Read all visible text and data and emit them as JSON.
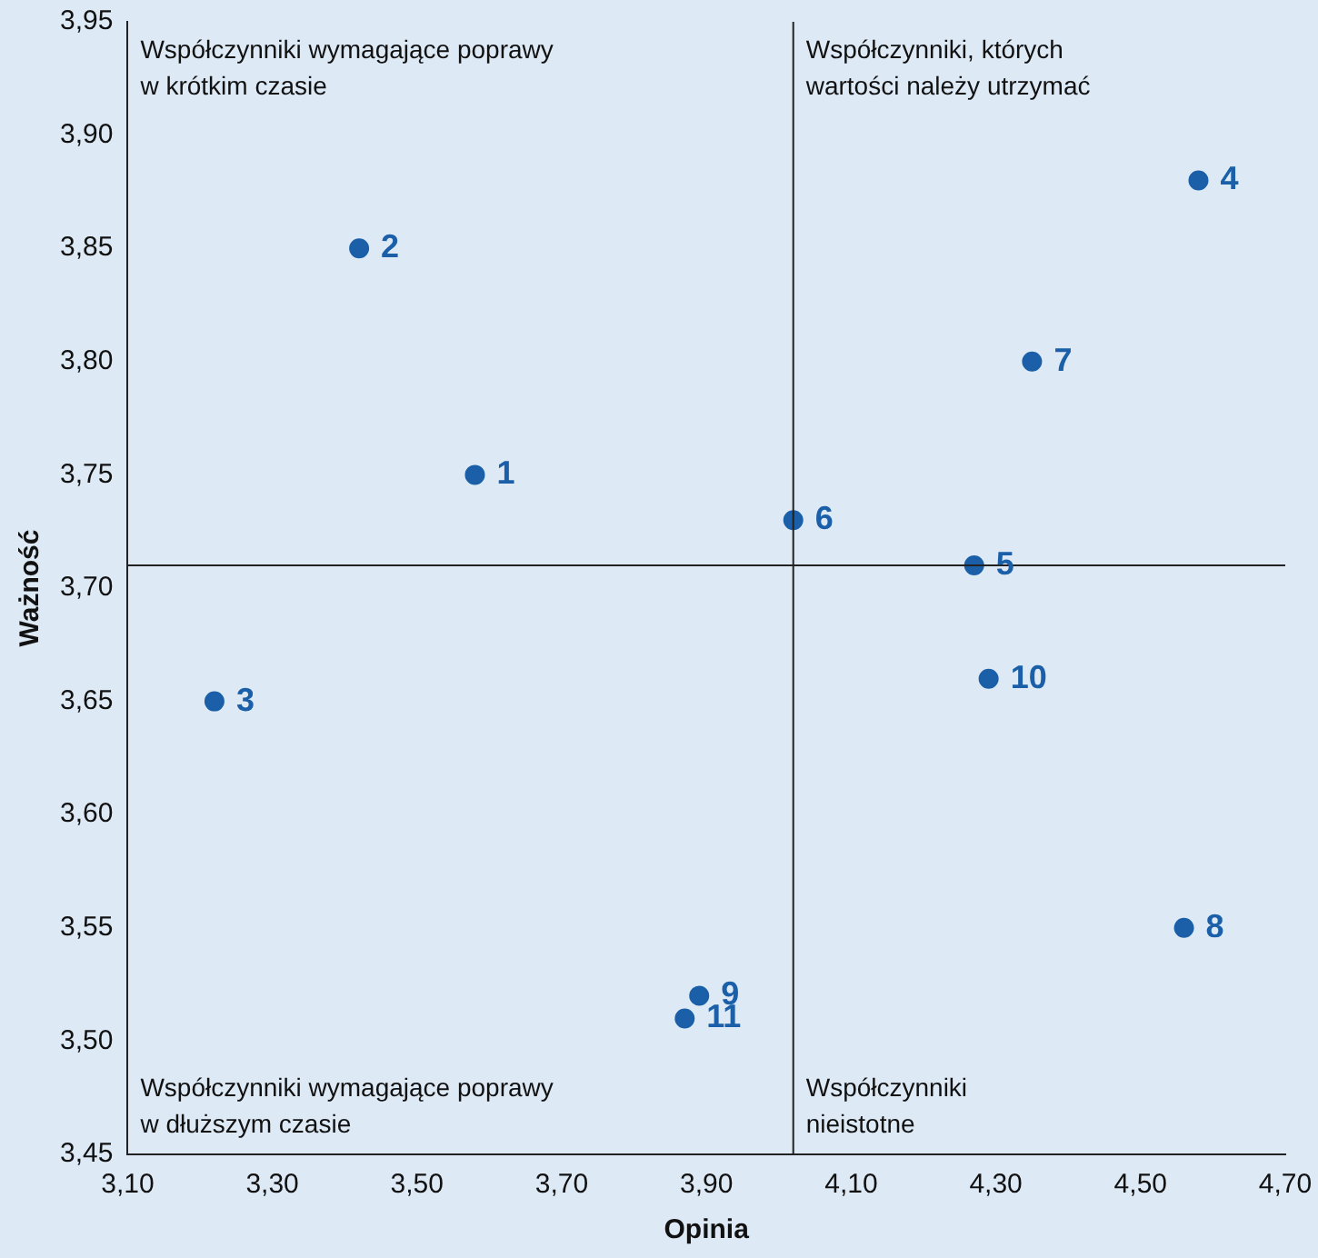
{
  "chart_data": {
    "type": "scatter",
    "xlabel": "Opinia",
    "ylabel": "Ważność",
    "x": [
      3.58,
      3.42,
      3.22,
      4.58,
      4.27,
      4.02,
      4.35,
      4.56,
      3.89,
      4.29,
      3.87
    ],
    "values": [
      3.75,
      3.85,
      3.65,
      3.88,
      3.71,
      3.73,
      3.8,
      3.55,
      3.52,
      3.66,
      3.51
    ],
    "color": "#1a5fa8",
    "marker": "circle",
    "grid": false,
    "legend": false,
    "xlim": [
      3.1,
      4.7
    ],
    "xticks": [
      {
        "value": 3.1,
        "label": "3,10"
      },
      {
        "value": 3.3,
        "label": "3,30"
      },
      {
        "value": 3.5,
        "label": "3,50"
      },
      {
        "value": 3.7,
        "label": "3,70"
      },
      {
        "value": 3.9,
        "label": "3,90"
      },
      {
        "value": 4.1,
        "label": "4,10"
      },
      {
        "value": 4.3,
        "label": "4,30"
      },
      {
        "value": 4.5,
        "label": "4,50"
      },
      {
        "value": 4.7,
        "label": "4,70"
      }
    ],
    "ylim": [
      3.45,
      3.95
    ],
    "yticks": [
      {
        "value": 3.45,
        "label": "3,45"
      },
      {
        "value": 3.5,
        "label": "3,50"
      },
      {
        "value": 3.55,
        "label": "3,55"
      },
      {
        "value": 3.6,
        "label": "3,60"
      },
      {
        "value": 3.65,
        "label": "3,65"
      },
      {
        "value": 3.7,
        "label": "3,70"
      },
      {
        "value": 3.75,
        "label": "3,75"
      },
      {
        "value": 3.8,
        "label": "3,80"
      },
      {
        "value": 3.85,
        "label": "3,85"
      },
      {
        "value": 3.9,
        "label": "3,90"
      },
      {
        "value": 3.95,
        "label": "3,95"
      }
    ],
    "ref_lines": [
      {
        "axis": "x",
        "value": 4.02,
        "color": "#222222"
      },
      {
        "axis": "y",
        "value": 3.71,
        "color": "#222222"
      }
    ],
    "annotations": [
      "Współczynniki wymagające poprawy\nw krótkim czasie",
      "Współczynniki, których\nwartości należy utrzymać",
      "Współczynniki wymagające poprawy\nw dłuższym czasie",
      "Współczynniki\nnieistotne",
      {
        "text": "1",
        "x": 3.58,
        "y": 3.75
      },
      {
        "text": "2",
        "x": 3.42,
        "y": 3.85
      },
      {
        "text": "3",
        "x": 3.22,
        "y": 3.65
      },
      {
        "text": "4",
        "x": 4.58,
        "y": 3.88
      },
      {
        "text": "5",
        "x": 4.27,
        "y": 3.71
      },
      {
        "text": "6",
        "x": 4.02,
        "y": 3.73
      },
      {
        "text": "7",
        "x": 4.35,
        "y": 3.8
      },
      {
        "text": "8",
        "x": 4.56,
        "y": 3.55
      },
      {
        "text": "9",
        "x": 3.89,
        "y": 3.52
      },
      {
        "text": "10",
        "x": 4.29,
        "y": 3.66
      },
      {
        "text": "11",
        "x": 3.87,
        "y": 3.51
      }
    ]
  }
}
